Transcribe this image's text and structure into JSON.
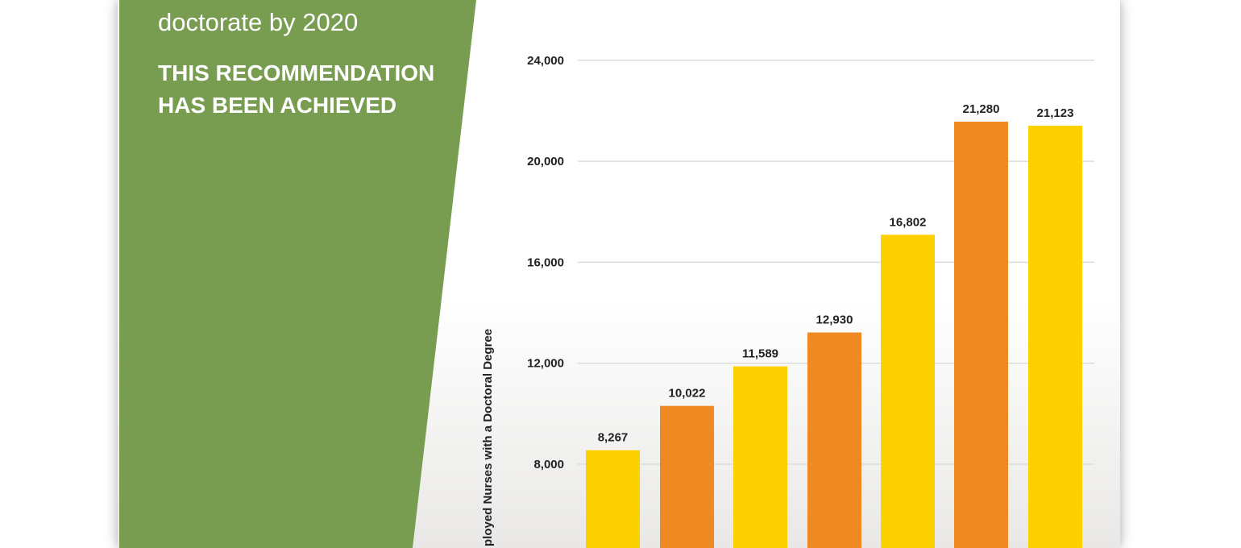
{
  "panel": {
    "subtitle": "doctorate by 2020",
    "status": "THIS RECOMMENDATION HAS BEEN ACHIEVED"
  },
  "colors": {
    "panel_green": "#789d50",
    "bar_yellow": "#fdd000",
    "bar_orange": "#ef8a22",
    "grid": "#dddddd"
  },
  "chart_data": {
    "type": "bar",
    "ylabel": "ployed Nurses with a Doctoral Degree",
    "yticks": [
      8000,
      12000,
      16000,
      20000,
      24000
    ],
    "ytick_labels": [
      "8,000",
      "12,000",
      "16,000",
      "20,000",
      "24,000"
    ],
    "values": [
      8267,
      10022,
      11589,
      12930,
      16802,
      21280,
      21123
    ],
    "value_labels": [
      "8,267",
      "10,022",
      "11,589",
      "12,930",
      "16,802",
      "21,280",
      "21,123"
    ],
    "bar_colors": [
      "#fdd000",
      "#ef8a22",
      "#fdd000",
      "#ef8a22",
      "#fdd000",
      "#ef8a22",
      "#fdd000"
    ],
    "grid": true
  }
}
